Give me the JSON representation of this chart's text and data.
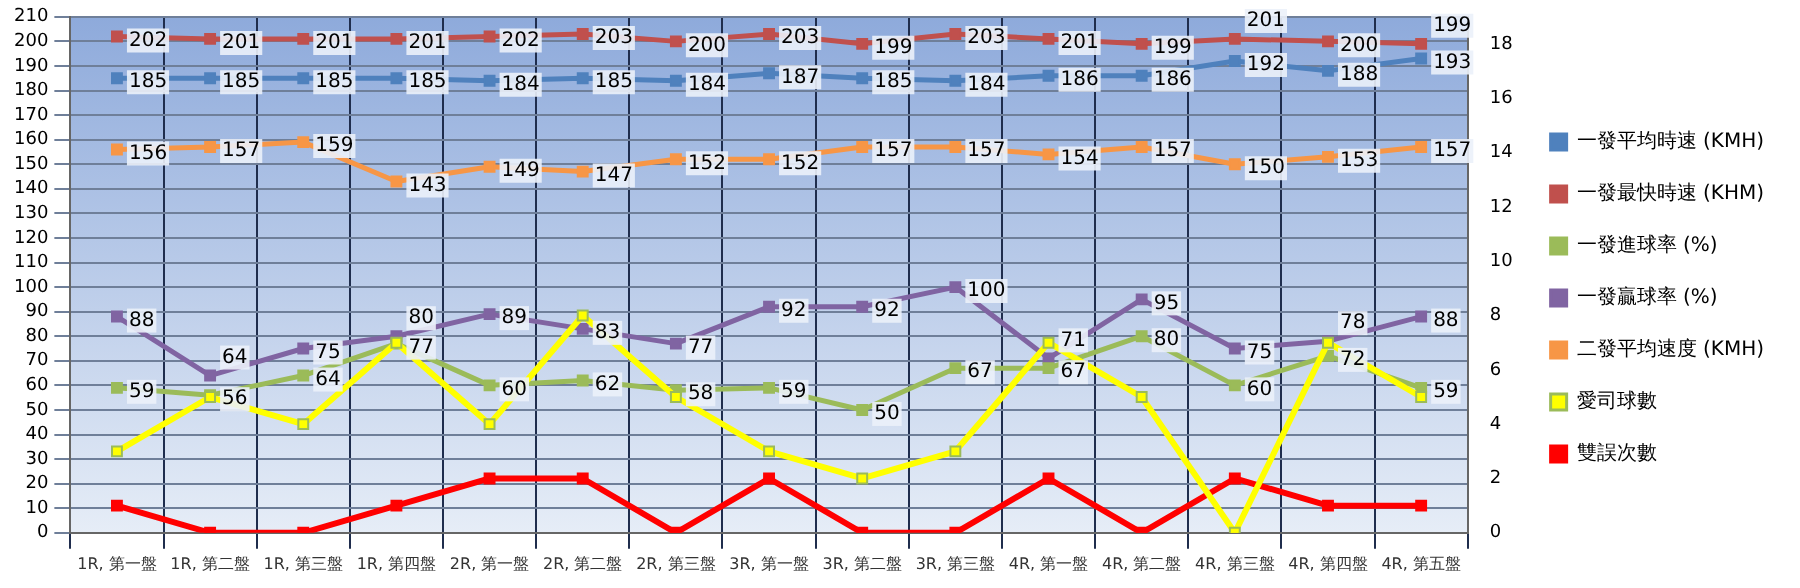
{
  "chart_data": {
    "type": "line",
    "categories": [
      "1R, 第一盤",
      "1R, 第二盤",
      "1R, 第三盤",
      "1R, 第四盤",
      "2R, 第一盤",
      "2R, 第二盤",
      "2R, 第三盤",
      "3R, 第一盤",
      "3R, 第二盤",
      "3R, 第三盤",
      "4R, 第一盤",
      "4R, 第二盤",
      "4R, 第三盤",
      "4R, 第四盤",
      "4R, 第五盤"
    ],
    "ylim": [
      0,
      210
    ],
    "yticks": [
      0,
      10,
      20,
      30,
      40,
      50,
      60,
      70,
      80,
      90,
      100,
      110,
      120,
      130,
      140,
      150,
      160,
      170,
      180,
      190,
      200,
      210
    ],
    "y2lim": [
      0,
      19
    ],
    "y2ticks": [
      0,
      2,
      4,
      6,
      8,
      10,
      12,
      14,
      16,
      18
    ],
    "grid": true,
    "legend": "right",
    "marker": "square",
    "line_style": "solid",
    "series": [
      {
        "name": "一發平均時速 (KMH)",
        "color": "#4f81bd",
        "values": [
          185,
          185,
          185,
          185,
          184,
          185,
          184,
          187,
          185,
          184,
          186,
          186,
          192,
          188,
          193
        ],
        "value_labels": [
          "185",
          "185",
          "185",
          "185",
          "184",
          "185",
          "184",
          "187",
          "185",
          "184",
          "186",
          "186",
          "192",
          "188",
          "193"
        ]
      },
      {
        "name": "一發最快時速 (KHM)",
        "color": "#c0504d",
        "values": [
          202,
          201,
          201,
          201,
          202,
          203,
          200,
          203,
          199,
          203,
          201,
          199,
          201,
          200,
          199
        ],
        "value_labels": [
          "202",
          "201",
          "201",
          "201",
          "202",
          "203",
          "200",
          "203",
          "199",
          "203",
          "201",
          "199",
          "201",
          "200",
          "199"
        ]
      },
      {
        "name": "一發進球率 (%)",
        "color": "#9bbb59",
        "values": [
          59,
          56,
          64,
          77,
          60,
          62,
          58,
          59,
          50,
          67,
          67,
          80,
          60,
          72,
          59
        ],
        "value_labels": [
          "59",
          "56",
          "64",
          "77",
          "60",
          "62",
          "58",
          "59",
          "50",
          "67",
          "67",
          "80",
          "60",
          "72",
          "59"
        ]
      },
      {
        "name": "一發贏球率 (%)",
        "color": "#8064a2",
        "values": [
          88,
          64,
          75,
          80,
          89,
          83,
          77,
          92,
          92,
          100,
          71,
          95,
          75,
          78,
          88
        ],
        "value_labels": [
          "88",
          "64",
          "75",
          "80",
          "89",
          "83",
          "77",
          "92",
          "92",
          "100",
          "71",
          "95",
          "75",
          "78",
          "88"
        ]
      },
      {
        "name": "二發平均速度 (KMH)",
        "color": "#f79646",
        "values": [
          156,
          157,
          159,
          143,
          149,
          147,
          152,
          152,
          157,
          157,
          154,
          157,
          150,
          153,
          157
        ],
        "value_labels": [
          "156",
          "157",
          "159",
          "143",
          "149",
          "147",
          "152",
          "152",
          "157",
          "157",
          "154",
          "157",
          "150",
          "153",
          "157"
        ]
      },
      {
        "name": "愛司球數",
        "color": "#ffff00",
        "axis": "y2",
        "values": [
          3,
          5,
          4,
          7,
          4,
          8,
          5,
          3,
          2,
          3,
          7,
          5,
          0,
          7,
          5
        ]
      },
      {
        "name": "雙誤次數",
        "color": "#ff0000",
        "axis": "y2",
        "values": [
          1,
          0,
          0,
          1,
          2,
          2,
          0,
          2,
          0,
          0,
          2,
          0,
          2,
          1,
          1
        ]
      }
    ]
  }
}
